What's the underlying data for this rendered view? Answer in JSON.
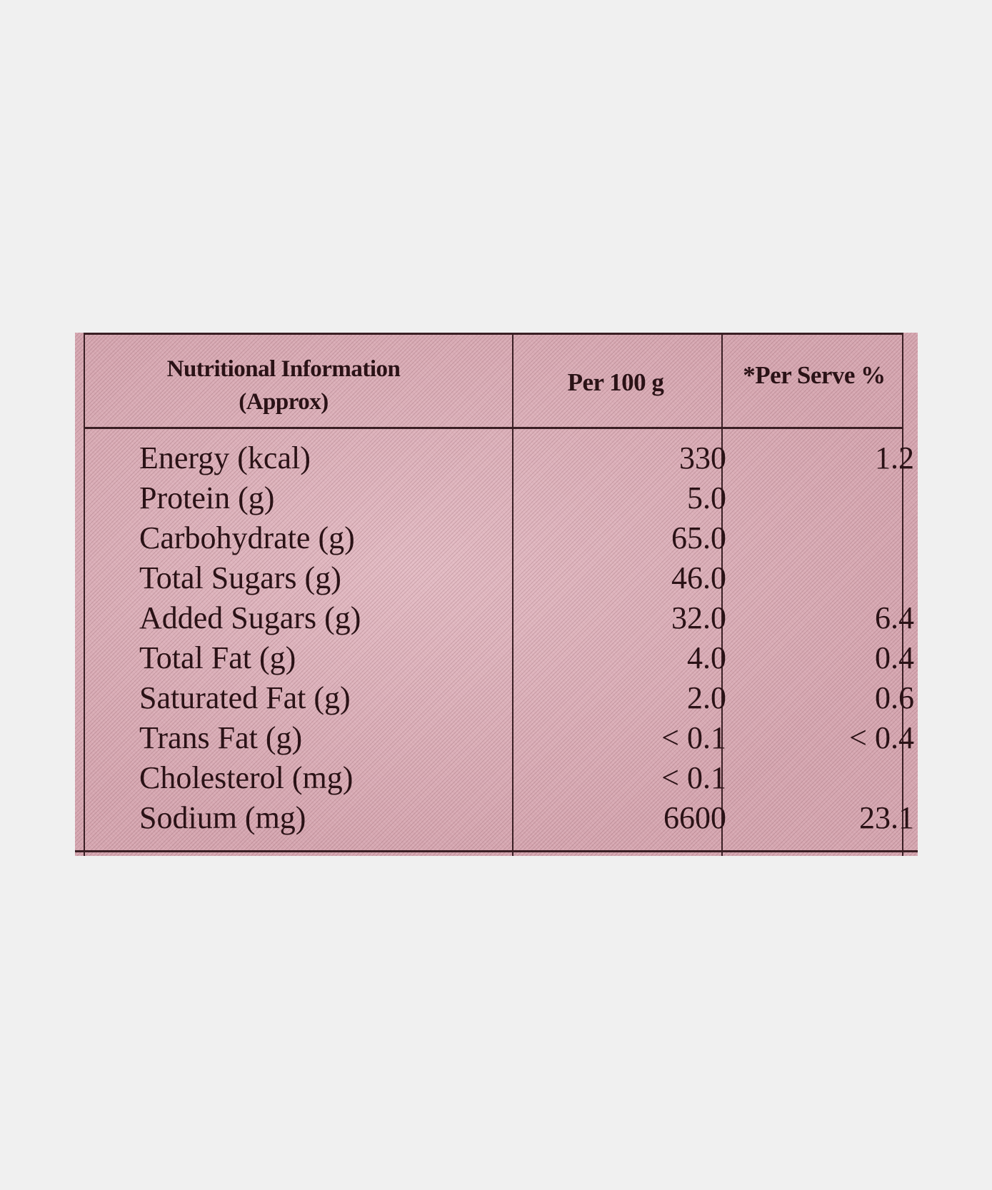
{
  "table": {
    "header": {
      "title_line1": "Nutritional Information",
      "title_line2": "(Approx)",
      "col_per100": "Per 100 g",
      "col_per_serve": "*Per Serve %"
    },
    "rows": [
      {
        "name": "Energy (kcal)",
        "per100": "330",
        "serve": "1.2"
      },
      {
        "name": "Protein (g)",
        "per100": "5.0",
        "serve": ""
      },
      {
        "name": "Carbohydrate (g)",
        "per100": "65.0",
        "serve": ""
      },
      {
        "name": "Total Sugars (g)",
        "per100": "46.0",
        "serve": ""
      },
      {
        "name": "Added Sugars (g)",
        "per100": "32.0",
        "serve": "6.4"
      },
      {
        "name": "Total Fat (g)",
        "per100": "4.0",
        "serve": "0.4"
      },
      {
        "name": "Saturated Fat (g)",
        "per100": "2.0",
        "serve": "0.6"
      },
      {
        "name": "Trans Fat (g)",
        "per100": "< 0.1",
        "serve": "< 0.4"
      },
      {
        "name": "Cholesterol (mg)",
        "per100": "< 0.1",
        "serve": ""
      },
      {
        "name": "Sodium (mg)",
        "per100": "6600",
        "serve": "23.1"
      }
    ]
  },
  "colors": {
    "label_background": "#d6a7b1",
    "ink": "#2a1216",
    "page_background": "#f0f0f0"
  }
}
